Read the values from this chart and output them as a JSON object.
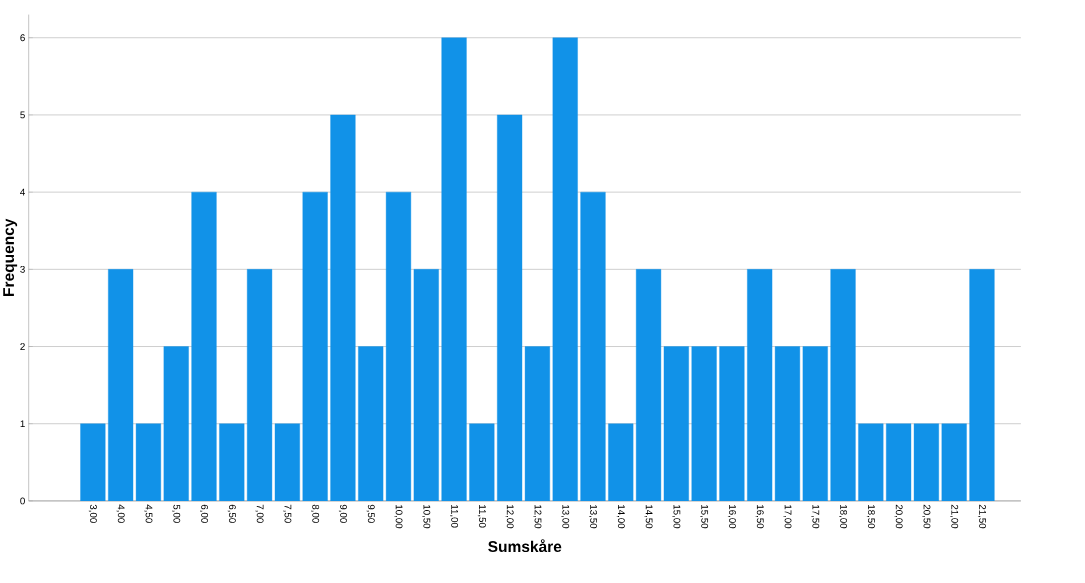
{
  "chart_data": {
    "type": "bar",
    "xlabel": "Sumskåre",
    "ylabel": "Frequency",
    "categories": [
      "3,00",
      "4,00",
      "4,50",
      "5,00",
      "6,00",
      "6,50",
      "7,00",
      "7,50",
      "8,00",
      "9,00",
      "9,50",
      "10,00",
      "10,50",
      "11,00",
      "11,50",
      "12,00",
      "12,50",
      "13,00",
      "13,50",
      "14,00",
      "14,50",
      "15,00",
      "15,50",
      "16,00",
      "16,50",
      "17,00",
      "17,50",
      "18,00",
      "18,50",
      "20,00",
      "20,50",
      "21,00",
      "21,50"
    ],
    "values": [
      1,
      3,
      1,
      2,
      4,
      1,
      3,
      1,
      4,
      5,
      2,
      4,
      3,
      6,
      1,
      5,
      2,
      6,
      4,
      1,
      3,
      2,
      2,
      2,
      3,
      2,
      2,
      3,
      1,
      1,
      1,
      1,
      3
    ],
    "color": "#1192e8",
    "ylim": [
      0,
      6.3
    ],
    "yticks": [
      0,
      1,
      2,
      3,
      4,
      5,
      6
    ],
    "grid": "y"
  }
}
